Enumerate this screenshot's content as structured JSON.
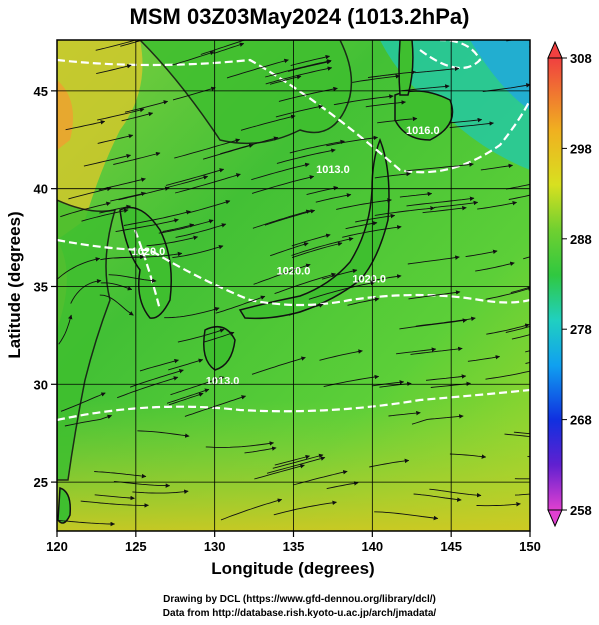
{
  "title": "MSM 03Z03May2024 (1013.2hPa)",
  "x_axis": {
    "label": "Longitude (degrees)",
    "min": 120,
    "max": 150,
    "ticks": [
      "120",
      "125",
      "130",
      "135",
      "140",
      "145",
      "150"
    ]
  },
  "y_axis": {
    "label": "Latitude  (degrees)",
    "min": 22.5,
    "max": 47.6,
    "ticks": [
      "25",
      "30",
      "35",
      "40",
      "45"
    ]
  },
  "colorbar": {
    "ticks": [
      "308",
      "298",
      "288",
      "278",
      "268",
      "258"
    ],
    "min": 258,
    "max": 308
  },
  "contours": [
    {
      "label": "1013.0",
      "lon": 137.5,
      "lat": 40.8
    },
    {
      "label": "1016.0",
      "lon": 143.2,
      "lat": 42.8
    },
    {
      "label": "1020.0",
      "lon": 125.8,
      "lat": 36.6
    },
    {
      "label": "1020.0",
      "lon": 135.0,
      "lat": 35.6
    },
    {
      "label": "1020.0",
      "lon": 139.8,
      "lat": 35.2
    },
    {
      "label": "1013.0",
      "lon": 130.5,
      "lat": 30.0
    }
  ],
  "footer": {
    "line1": "Drawing by DCL (https://www.gfd-dennou.org/library/dcl/)",
    "line2": "Data from http://database.rish.kyoto-u.ac.jp/arch/jmadata/"
  }
}
